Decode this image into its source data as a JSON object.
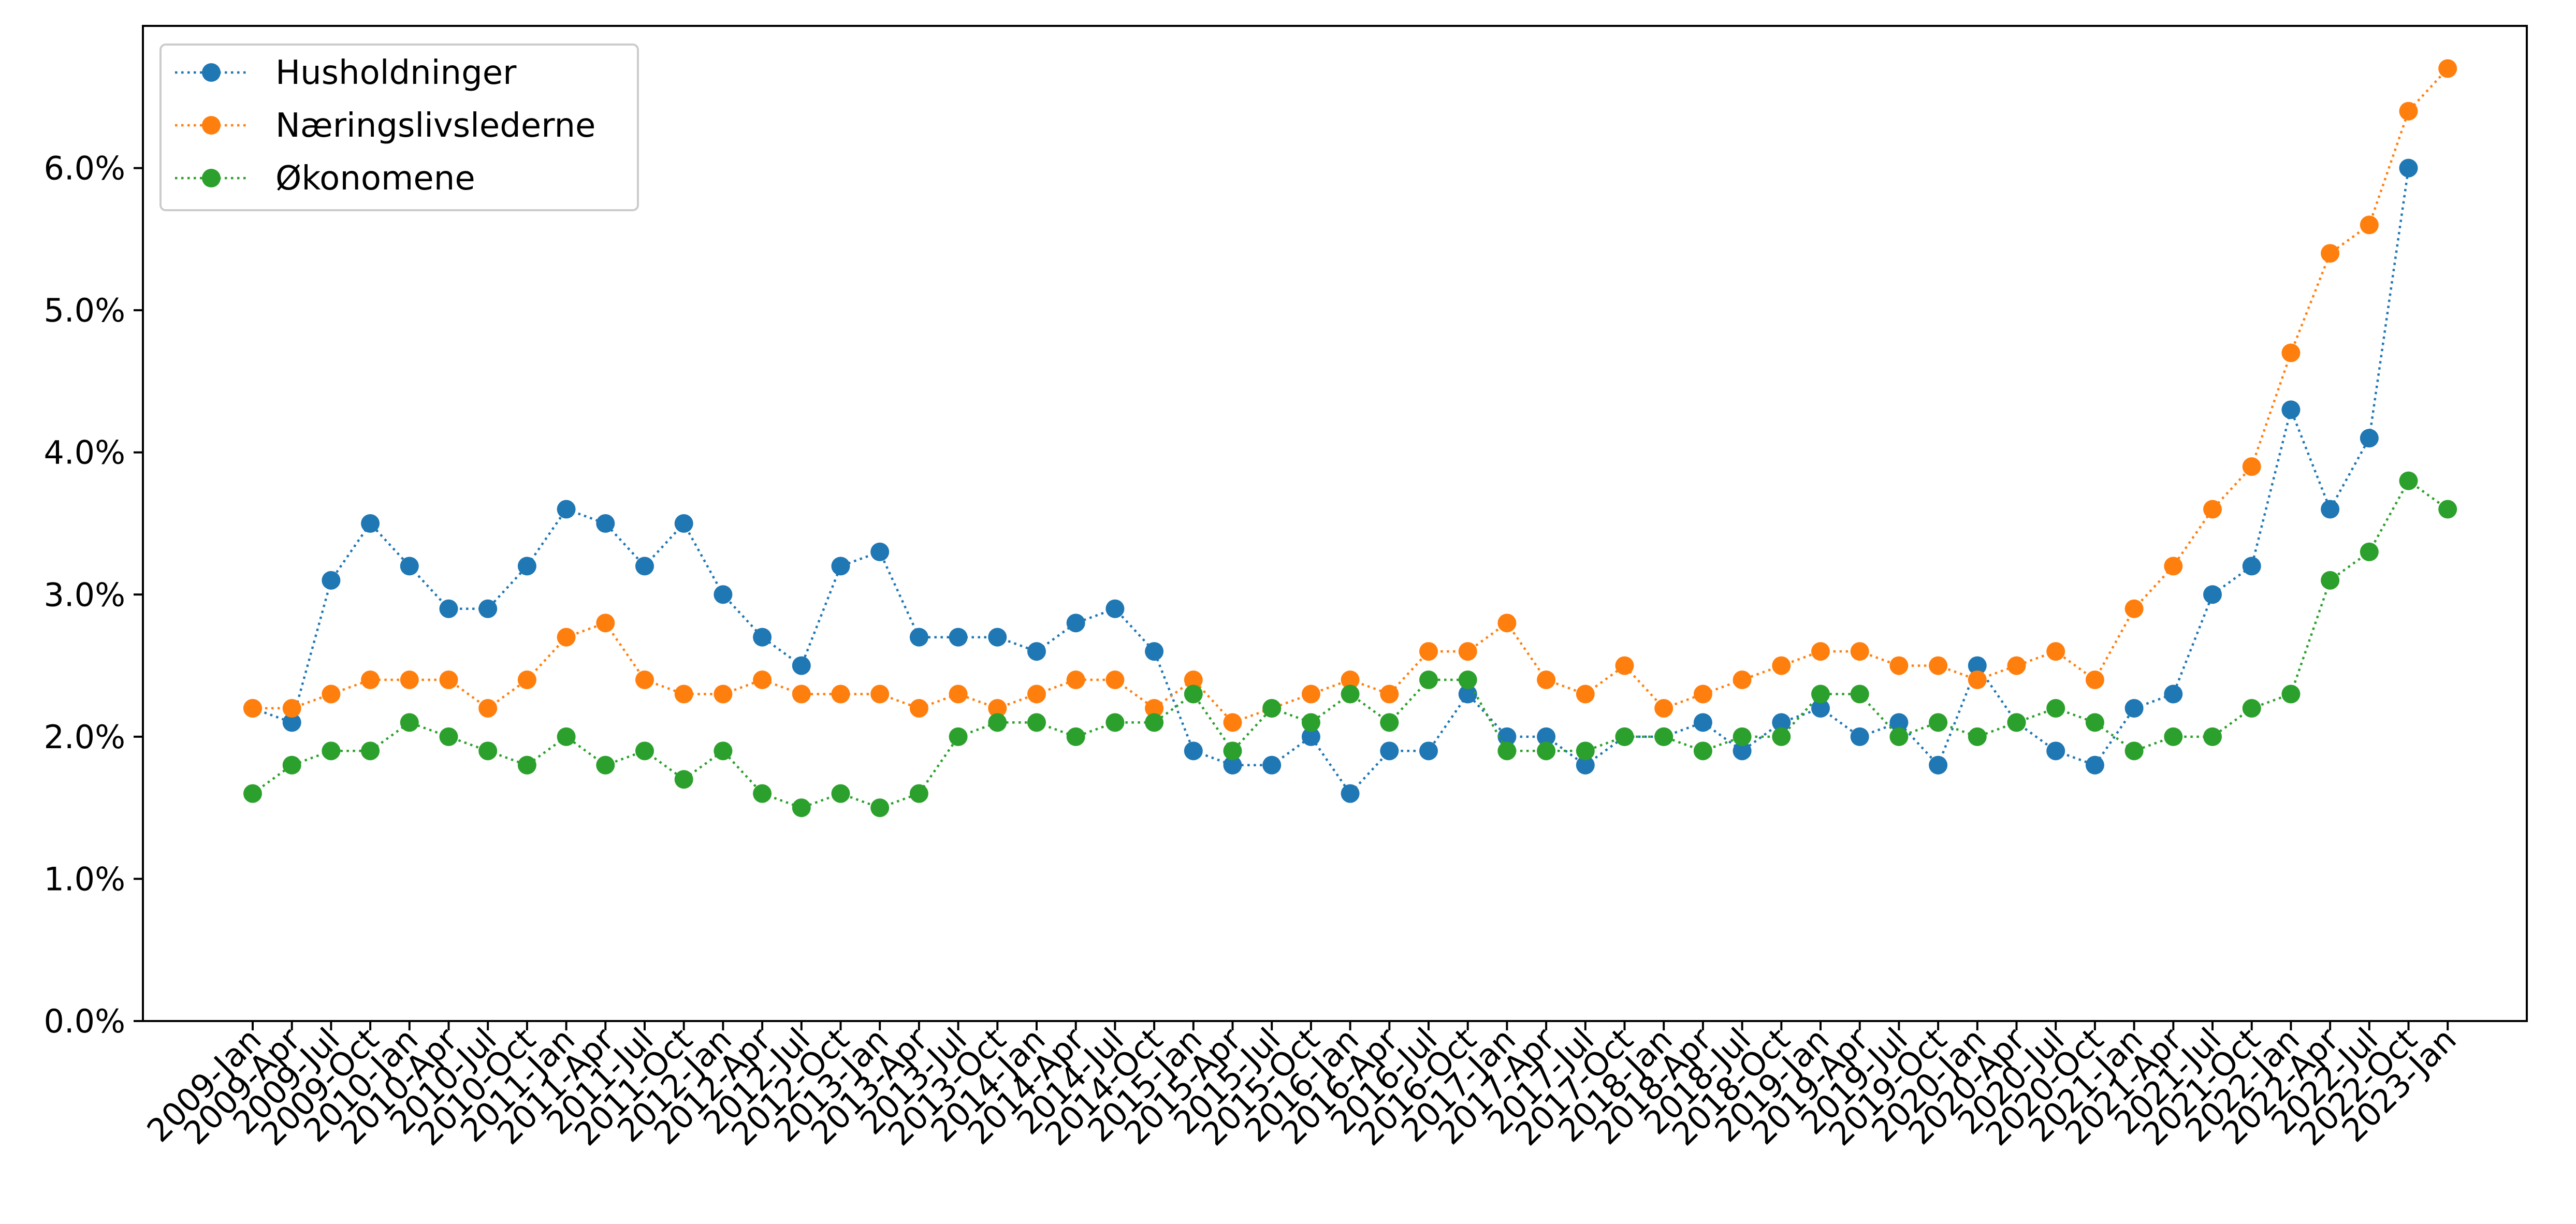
{
  "chart_data": {
    "type": "line",
    "title": "",
    "xlabel": "",
    "ylabel": "",
    "ylim": [
      0,
      0.07
    ],
    "y_ticks": [
      0.0,
      0.01,
      0.02,
      0.03,
      0.04,
      0.05,
      0.06
    ],
    "y_tick_labels": [
      "0.0%",
      "1.0%",
      "2.0%",
      "3.0%",
      "4.0%",
      "5.0%",
      "6.0%"
    ],
    "legend_position": "upper-left",
    "grid": false,
    "categories": [
      "2009-Jan",
      "2009-Apr",
      "2009-Jul",
      "2009-Oct",
      "2010-Jan",
      "2010-Apr",
      "2010-Jul",
      "2010-Oct",
      "2011-Jan",
      "2011-Apr",
      "2011-Jul",
      "2011-Oct",
      "2012-Jan",
      "2012-Apr",
      "2012-Jul",
      "2012-Oct",
      "2013-Jan",
      "2013-Apr",
      "2013-Jul",
      "2013-Oct",
      "2014-Jan",
      "2014-Apr",
      "2014-Jul",
      "2014-Oct",
      "2015-Jan",
      "2015-Apr",
      "2015-Jul",
      "2015-Oct",
      "2016-Jan",
      "2016-Apr",
      "2016-Jul",
      "2016-Oct",
      "2017-Jan",
      "2017-Apr",
      "2017-Jul",
      "2017-Oct",
      "2018-Jan",
      "2018-Apr",
      "2018-Jul",
      "2018-Oct",
      "2019-Jan",
      "2019-Apr",
      "2019-Jul",
      "2019-Oct",
      "2020-Jan",
      "2020-Apr",
      "2020-Jul",
      "2020-Oct",
      "2021-Jan",
      "2021-Apr",
      "2021-Jul",
      "2021-Oct",
      "2022-Jan",
      "2022-Apr",
      "2022-Jul",
      "2022-Oct",
      "2023-Jan"
    ],
    "series": [
      {
        "name": "Husholdninger",
        "color": "#1f77b4",
        "values": [
          0.022,
          0.021,
          0.031,
          0.035,
          0.032,
          0.029,
          0.029,
          0.032,
          0.036,
          0.035,
          0.032,
          0.035,
          0.03,
          0.027,
          0.025,
          0.032,
          0.033,
          0.027,
          0.027,
          0.027,
          0.026,
          0.028,
          0.029,
          0.026,
          0.019,
          0.018,
          0.018,
          0.02,
          0.016,
          0.019,
          0.019,
          0.023,
          0.02,
          0.02,
          0.018,
          0.02,
          0.02,
          0.021,
          0.019,
          0.021,
          0.022,
          0.02,
          0.021,
          0.018,
          0.025,
          0.021,
          0.019,
          0.018,
          0.022,
          0.023,
          0.03,
          0.032,
          0.043,
          0.036,
          0.041,
          0.06,
          null
        ]
      },
      {
        "name": "Næringslivslederne",
        "color": "#ff7f0e",
        "values": [
          0.022,
          0.022,
          0.023,
          0.024,
          0.024,
          0.024,
          0.022,
          0.024,
          0.027,
          0.028,
          0.024,
          0.023,
          0.023,
          0.024,
          0.023,
          0.023,
          0.023,
          0.022,
          0.023,
          0.022,
          0.023,
          0.024,
          0.024,
          0.022,
          0.024,
          0.021,
          0.022,
          0.023,
          0.024,
          0.023,
          0.026,
          0.026,
          0.028,
          0.024,
          0.023,
          0.025,
          0.022,
          0.023,
          0.024,
          0.025,
          0.026,
          0.026,
          0.025,
          0.025,
          0.024,
          0.025,
          0.026,
          0.024,
          0.029,
          0.032,
          0.036,
          0.039,
          0.047,
          0.054,
          0.056,
          0.064,
          0.067
        ]
      },
      {
        "name": "Økonomene",
        "color": "#2ca02c",
        "values": [
          0.016,
          0.018,
          0.019,
          0.019,
          0.021,
          0.02,
          0.019,
          0.018,
          0.02,
          0.018,
          0.019,
          0.017,
          0.019,
          0.016,
          0.015,
          0.016,
          0.015,
          0.016,
          0.02,
          0.021,
          0.021,
          0.02,
          0.021,
          0.021,
          0.023,
          0.019,
          0.022,
          0.021,
          0.023,
          0.021,
          0.024,
          0.024,
          0.019,
          0.019,
          0.019,
          0.02,
          0.02,
          0.019,
          0.02,
          0.02,
          0.023,
          0.023,
          0.02,
          0.021,
          0.02,
          0.021,
          0.022,
          0.021,
          0.019,
          0.02,
          0.02,
          0.022,
          0.023,
          0.031,
          0.033,
          0.038,
          0.036
        ]
      }
    ]
  }
}
